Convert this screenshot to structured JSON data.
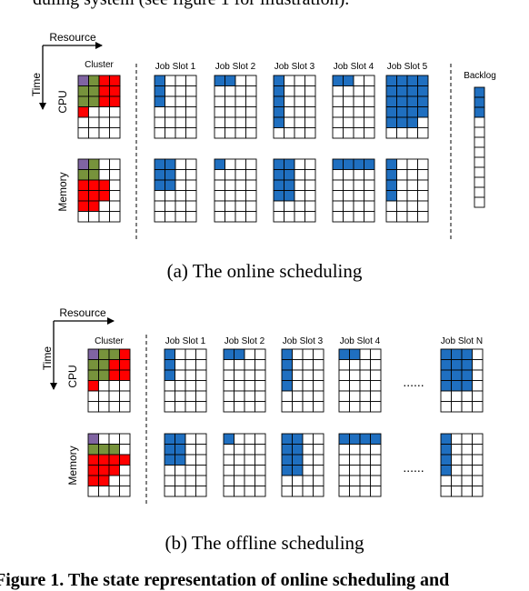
{
  "page_text": {
    "top_line": "duling system (see figure 1 for illustration).",
    "bottom_line": "Figure 1. The state representation of online scheduling and"
  },
  "colors": {
    "blue": "#1f6fc0",
    "green": "#77933c",
    "red": "#ff0000",
    "purple": "#8064a2",
    "grid": "#000000"
  },
  "icons": [
    "resource-arrow-icon",
    "time-arrow-icon"
  ],
  "panels": [
    {
      "id": "online",
      "caption": "(a) The online scheduling",
      "resource_label": "Resource",
      "time_label": "Time",
      "cluster_label": "Cluster",
      "rows": [
        "CPU",
        "Memory"
      ],
      "cluster": {
        "CPU": [
          "PGRR",
          "GGRR",
          "GGRR",
          "RWWW",
          "WWWW",
          "WWWW"
        ],
        "Memory": [
          "PGWW",
          "GGWW",
          "RRRW",
          "RRRW",
          "RRWW",
          "WWWW"
        ]
      },
      "slot_labels": [
        "Job Slot 1",
        "Job Slot 2",
        "Job Slot 3",
        "Job Slot 4",
        "Job Slot 5"
      ],
      "slots": [
        {
          "CPU": [
            1,
            1,
            1,
            0,
            0,
            0
          ],
          "Memory": [
            2,
            2,
            2,
            0,
            0,
            0
          ]
        },
        {
          "CPU": [
            2,
            0,
            0,
            0,
            0,
            0
          ],
          "Memory": [
            1,
            0,
            0,
            0,
            0,
            0
          ]
        },
        {
          "CPU": [
            1,
            1,
            1,
            1,
            1,
            0
          ],
          "Memory": [
            2,
            2,
            2,
            2,
            0,
            0
          ]
        },
        {
          "CPU": [
            2,
            0,
            0,
            0,
            0,
            0
          ],
          "Memory": [
            4,
            0,
            0,
            0,
            0,
            0
          ]
        },
        {
          "CPU": [
            4,
            4,
            4,
            4,
            3,
            0
          ],
          "Memory": [
            1,
            1,
            1,
            1,
            0,
            0
          ]
        }
      ],
      "ellipsis": "",
      "backlog_label": "Backlog",
      "backlog": {
        "cells": 12,
        "filled": 3
      }
    },
    {
      "id": "offline",
      "caption": "(b) The offline scheduling",
      "resource_label": "Resource",
      "time_label": "Time",
      "cluster_label": "Cluster",
      "rows": [
        "CPU",
        "Memory"
      ],
      "cluster": {
        "CPU": [
          "PGGR",
          "GGRR",
          "GGRR",
          "RWWW",
          "WWWW",
          "WWWW"
        ],
        "Memory": [
          "PWWW",
          "GGGW",
          "RRRR",
          "RRRW",
          "RRWW",
          "WWWW"
        ]
      },
      "slot_labels": [
        "Job Slot 1",
        "Job Slot 2",
        "Job Slot 3",
        "Job Slot 4",
        "Job Slot N"
      ],
      "slots": [
        {
          "CPU": [
            1,
            1,
            1,
            0,
            0,
            0
          ],
          "Memory": [
            2,
            2,
            2,
            0,
            0,
            0
          ]
        },
        {
          "CPU": [
            2,
            0,
            0,
            0,
            0,
            0
          ],
          "Memory": [
            1,
            0,
            0,
            0,
            0,
            0
          ]
        },
        {
          "CPU": [
            1,
            1,
            1,
            1,
            0,
            0
          ],
          "Memory": [
            2,
            2,
            2,
            2,
            0,
            0
          ]
        },
        {
          "CPU": [
            2,
            0,
            0,
            0,
            0,
            0
          ],
          "Memory": [
            4,
            0,
            0,
            0,
            0,
            0
          ]
        },
        {
          "CPU": [
            3,
            3,
            3,
            3,
            0,
            0
          ],
          "Memory": [
            1,
            1,
            1,
            1,
            0,
            0
          ]
        }
      ],
      "ellipsis": "......",
      "backlog_label": "",
      "backlog": null
    }
  ]
}
